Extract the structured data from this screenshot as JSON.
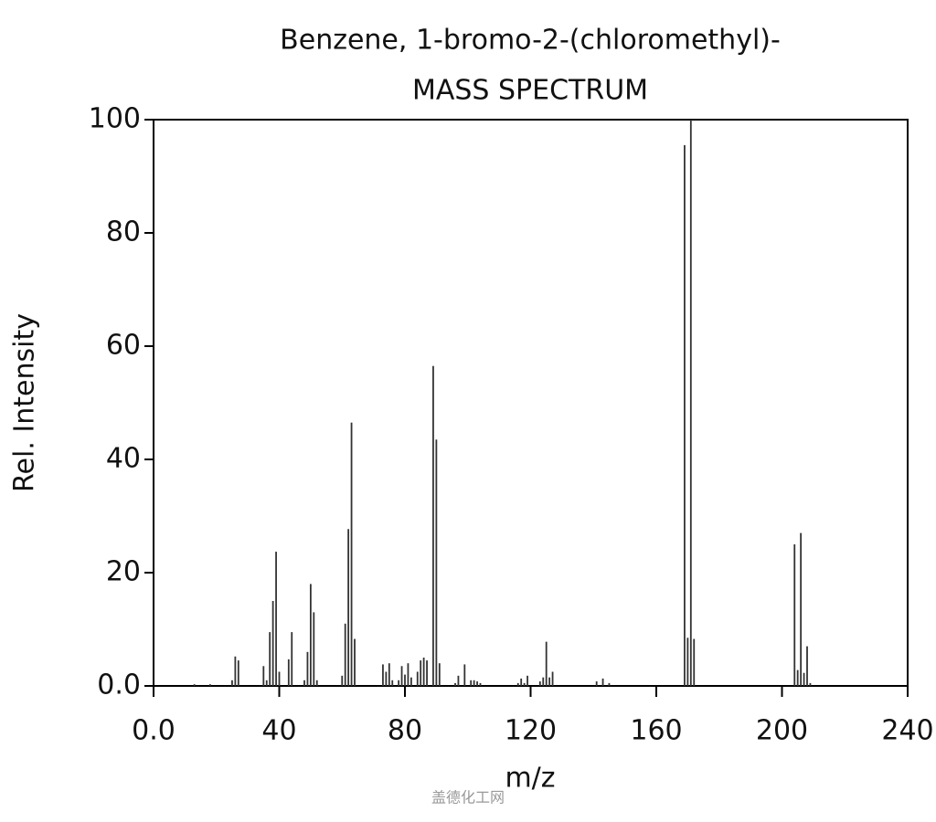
{
  "chart_data": {
    "type": "bar",
    "title": "Benzene, 1-bromo-2-(chloromethyl)-",
    "subtitle": "MASS SPECTRUM",
    "x_label": "m/z",
    "y_label": "Rel. Intensity",
    "watermark": "盖德化工网",
    "color": "#333333",
    "x": [
      13,
      18,
      25,
      26,
      27,
      35,
      36,
      37,
      38,
      39,
      40,
      43,
      44,
      48,
      49,
      50,
      51,
      52,
      60,
      61,
      62,
      63,
      64,
      73,
      74,
      75,
      76,
      78,
      79,
      80,
      81,
      82,
      84,
      85,
      86,
      87,
      89,
      90,
      91,
      96,
      97,
      99,
      101,
      102,
      103,
      104,
      116,
      117,
      118,
      119,
      123,
      124,
      125,
      126,
      127,
      141,
      143,
      145,
      169,
      170,
      171,
      172,
      204,
      205,
      206,
      207,
      208,
      209
    ],
    "values": [
      0.3,
      0.3,
      1,
      5.2,
      4.5,
      3.5,
      1,
      9.5,
      15,
      23.7,
      2.5,
      4.7,
      9.5,
      1,
      6,
      18,
      13,
      1,
      1.8,
      11,
      27.7,
      46.5,
      8.3,
      3.8,
      2.5,
      4,
      1,
      1,
      3.5,
      2,
      4,
      1.5,
      2.5,
      4.5,
      5,
      4.5,
      56.5,
      43.5,
      4,
      0.5,
      1.8,
      3.8,
      1,
      1,
      0.8,
      0.5,
      0.5,
      1.3,
      0.5,
      1.8,
      0.8,
      1.5,
      7.8,
      1.5,
      2.5,
      0.8,
      1.3,
      0.5,
      95.5,
      8.5,
      100,
      8.3,
      25,
      2.8,
      27,
      2.3,
      7,
      0.5
    ],
    "xlim": [
      0,
      240
    ],
    "ylim": [
      0,
      100
    ],
    "xticks": [
      {
        "value": 0,
        "label": "0.0"
      },
      40,
      80,
      120,
      160,
      200,
      240
    ],
    "yticks": [
      {
        "value": 0,
        "label": "0.0"
      },
      20,
      40,
      60,
      80,
      100
    ]
  }
}
